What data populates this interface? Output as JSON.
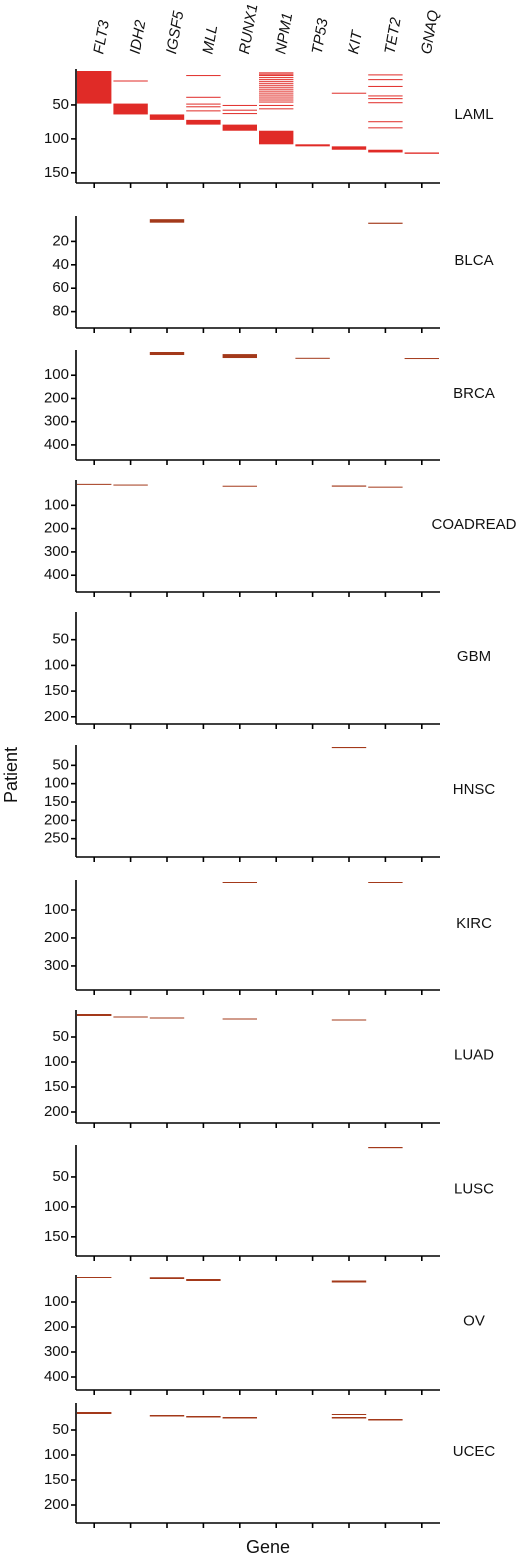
{
  "chart_data": {
    "type": "mutation-matrix",
    "x_label": "Gene",
    "y_label": "Patient",
    "categories": [
      "FLT3",
      "IDH2",
      "IGSF5",
      "MLL",
      "RUNX1",
      "NPM1",
      "TP53",
      "KIT",
      "TET2",
      "GNAQ"
    ],
    "panels": [
      {
        "name": "LAML",
        "color": "#e02b27",
        "ylim": [
          0,
          165
        ],
        "yticks": [
          50,
          100,
          150
        ],
        "values": [
          [
            [
              0,
              48
            ]
          ],
          [
            [
              14,
              15
            ],
            [
              48,
              64
            ]
          ],
          [
            [
              64,
              72
            ]
          ],
          [
            [
              6,
              7
            ],
            [
              38,
              39
            ],
            [
              48,
              49
            ],
            [
              52,
              53
            ],
            [
              58,
              59
            ],
            [
              72,
              79
            ]
          ],
          [
            [
              50,
              51
            ],
            [
              57,
              58
            ],
            [
              62,
              63
            ],
            [
              79,
              88
            ]
          ],
          [
            [
              2,
              3
            ],
            [
              4,
              5
            ],
            [
              6,
              7
            ],
            [
              9,
              10
            ],
            [
              12,
              13
            ],
            [
              15,
              16
            ],
            [
              18,
              19
            ],
            [
              21,
              22
            ],
            [
              24,
              25
            ],
            [
              27,
              28
            ],
            [
              30,
              31
            ],
            [
              33,
              34
            ],
            [
              36,
              37
            ],
            [
              39,
              40
            ],
            [
              42,
              43
            ],
            [
              45,
              46
            ],
            [
              50,
              51
            ],
            [
              55,
              56
            ],
            [
              88,
              108
            ]
          ],
          [
            [
              108,
              111
            ]
          ],
          [
            [
              32,
              33
            ],
            [
              111,
              116
            ]
          ],
          [
            [
              5,
              6
            ],
            [
              12,
              13
            ],
            [
              22,
              23
            ],
            [
              36,
              37
            ],
            [
              40,
              41
            ],
            [
              46,
              47
            ],
            [
              74,
              75
            ],
            [
              83,
              84
            ],
            [
              116,
              120
            ]
          ],
          [
            [
              120,
              122
            ]
          ]
        ]
      },
      {
        "name": "BLCA",
        "color": "#a3391a",
        "ylim": [
          0,
          94
        ],
        "yticks": [
          20,
          40,
          60,
          80
        ],
        "values": [
          [],
          [],
          [
            [
              1,
              4
            ]
          ],
          [],
          [],
          [],
          [],
          [],
          [
            [
              4,
              5
            ]
          ],
          []
        ]
      },
      {
        "name": "BRCA",
        "color": "#a3391a",
        "ylim": [
          0,
          465
        ],
        "yticks": [
          100,
          200,
          300,
          400
        ],
        "values": [
          [],
          [],
          [
            [
              0,
              13
            ]
          ],
          [],
          [
            [
              9,
              26
            ]
          ],
          [],
          [
            [
              25,
              28
            ]
          ],
          [],
          [],
          [
            [
              26,
              29
            ]
          ]
        ]
      },
      {
        "name": "COADREAD",
        "color": "#a3391a",
        "ylim": [
          0,
          472
        ],
        "yticks": [
          100,
          200,
          300,
          400
        ],
        "values": [
          [
            [
              8,
              12
            ]
          ],
          [
            [
              11,
              15
            ]
          ],
          [],
          [],
          [
            [
              16,
              17
            ]
          ],
          [],
          [],
          [
            [
              15,
              20
            ]
          ],
          [
            [
              20,
              24
            ]
          ],
          []
        ]
      },
      {
        "name": "GBM",
        "color": "#a3391a",
        "ylim": [
          0,
          214
        ],
        "yticks": [
          50,
          100,
          150,
          200
        ],
        "values": [
          [],
          [],
          [],
          [],
          [],
          [],
          [],
          [],
          [],
          []
        ]
      },
      {
        "name": "HNSC",
        "color": "#a3391a",
        "ylim": [
          0,
          300
        ],
        "yticks": [
          50,
          100,
          150,
          200,
          250
        ],
        "values": [
          [],
          [],
          [],
          [],
          [],
          [],
          [],
          [
            [
              0,
              3
            ]
          ],
          [],
          []
        ]
      },
      {
        "name": "KIRC",
        "color": "#a3391a",
        "ylim": [
          0,
          386
        ],
        "yticks": [
          100,
          200,
          300
        ],
        "values": [
          [],
          [],
          [],
          [],
          [
            [
              0,
              3
            ]
          ],
          [],
          [],
          [],
          [
            [
              0,
              3
            ]
          ],
          []
        ]
      },
      {
        "name": "LUAD",
        "color": "#a3391a",
        "ylim": [
          0,
          222
        ],
        "yticks": [
          50,
          100,
          150,
          200
        ],
        "values": [
          [
            [
              4,
              8
            ]
          ],
          [
            [
              9,
              11
            ]
          ],
          [
            [
              11,
              13
            ]
          ],
          [],
          [
            [
              13,
              15
            ]
          ],
          [],
          [],
          [
            [
              15,
              17
            ]
          ],
          [],
          []
        ]
      },
      {
        "name": "LUSC",
        "color": "#a3391a",
        "ylim": [
          0,
          182
        ],
        "yticks": [
          50,
          100,
          150
        ],
        "values": [
          [],
          [],
          [],
          [],
          [],
          [],
          [],
          [],
          [
            [
              0,
              2
            ]
          ],
          []
        ]
      },
      {
        "name": "OV",
        "color": "#a3391a",
        "ylim": [
          0,
          452
        ],
        "yticks": [
          100,
          200,
          300,
          400
        ],
        "values": [
          [
            [
              0,
              4
            ]
          ],
          [],
          [
            [
              1,
              8
            ]
          ],
          [
            [
              8,
              16
            ]
          ],
          [],
          [],
          [],
          [
            [
              14,
              22
            ]
          ],
          [],
          []
        ]
      },
      {
        "name": "UCEC",
        "color": "#a3391a",
        "ylim": [
          0,
          236
        ],
        "yticks": [
          50,
          100,
          150,
          200
        ],
        "values": [
          [
            [
              14,
              18
            ]
          ],
          [],
          [
            [
              20,
              23
            ]
          ],
          [
            [
              22,
              25
            ]
          ],
          [
            [
              24,
              27
            ]
          ],
          [],
          [],
          [
            [
              18,
              19
            ],
            [
              24,
              27
            ]
          ],
          [
            [
              28,
              31
            ]
          ],
          []
        ]
      }
    ]
  }
}
